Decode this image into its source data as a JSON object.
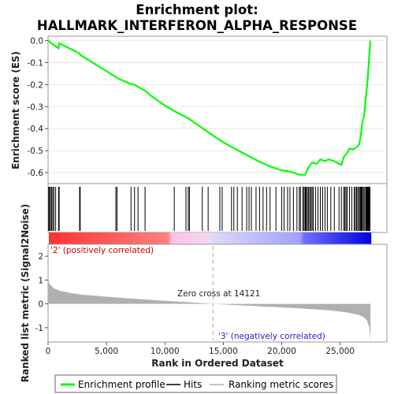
{
  "chart_data": {
    "type": "line",
    "title_line1": "Enrichment plot:",
    "title_line2": "HALLMARK_INTERFERON_ALPHA_RESPONSE",
    "es_panel": {
      "ylabel": "Enrichment score (ES)",
      "ylim": [
        -0.65,
        0.02
      ],
      "yticks": [
        "0.0",
        "-0.1",
        "-0.2",
        "-0.3",
        "-0.4",
        "-0.5",
        "-0.6"
      ],
      "ytick_values": [
        0.0,
        -0.1,
        -0.2,
        -0.3,
        -0.4,
        -0.5,
        -0.6
      ],
      "line_color": "#00ff00",
      "series_name": "Enrichment profile",
      "points": [
        [
          0,
          0.0
        ],
        [
          900,
          -0.035
        ],
        [
          950,
          -0.012
        ],
        [
          2700,
          -0.058
        ],
        [
          2750,
          -0.065
        ],
        [
          5800,
          -0.165
        ],
        [
          5900,
          -0.17
        ],
        [
          7100,
          -0.198
        ],
        [
          7400,
          -0.2
        ],
        [
          7700,
          -0.21
        ],
        [
          8300,
          -0.228
        ],
        [
          9000,
          -0.258
        ],
        [
          10000,
          -0.295
        ],
        [
          10800,
          -0.32
        ],
        [
          11800,
          -0.348
        ],
        [
          12100,
          -0.357
        ],
        [
          13000,
          -0.39
        ],
        [
          14121,
          -0.432
        ],
        [
          15000,
          -0.462
        ],
        [
          16000,
          -0.492
        ],
        [
          17000,
          -0.52
        ],
        [
          18000,
          -0.548
        ],
        [
          19000,
          -0.572
        ],
        [
          20000,
          -0.59
        ],
        [
          20500,
          -0.593
        ],
        [
          21000,
          -0.6
        ],
        [
          21500,
          -0.61
        ],
        [
          22000,
          -0.61
        ],
        [
          22300,
          -0.575
        ],
        [
          22600,
          -0.555
        ],
        [
          23000,
          -0.56
        ],
        [
          23300,
          -0.54
        ],
        [
          23700,
          -0.548
        ],
        [
          24000,
          -0.54
        ],
        [
          24500,
          -0.548
        ],
        [
          24900,
          -0.56
        ],
        [
          25100,
          -0.565
        ],
        [
          25300,
          -0.53
        ],
        [
          25600,
          -0.51
        ],
        [
          25800,
          -0.49
        ],
        [
          26100,
          -0.495
        ],
        [
          26400,
          -0.485
        ],
        [
          26600,
          -0.475
        ],
        [
          26750,
          -0.44
        ],
        [
          26900,
          -0.37
        ],
        [
          27050,
          -0.34
        ],
        [
          27200,
          -0.26
        ],
        [
          27350,
          -0.18
        ],
        [
          27450,
          -0.1
        ],
        [
          27530,
          -0.04
        ],
        [
          27600,
          0.0
        ]
      ]
    },
    "hits": {
      "label": "Hits",
      "positions": [
        50,
        120,
        200,
        300,
        400,
        500,
        650,
        900,
        950,
        2700,
        2750,
        5800,
        5900,
        7100,
        7400,
        7700,
        8300,
        10800,
        11800,
        12000,
        12100,
        13200,
        13700,
        14700,
        14900,
        15700,
        15900,
        16200,
        16600,
        17000,
        17200,
        17400,
        17800,
        18100,
        18400,
        18700,
        19000,
        19500,
        20000,
        20200,
        20500,
        20700,
        21000,
        21300,
        21500,
        21600,
        21800,
        21900,
        22000,
        22050,
        22100,
        22200,
        22300,
        22400,
        22500,
        22600,
        22700,
        22900,
        23100,
        23300,
        23500,
        23700,
        23900,
        24200,
        24500,
        24900,
        25100,
        25300,
        25400,
        25500,
        25600,
        25800,
        26000,
        26200,
        26300,
        26400,
        26500,
        26600,
        26700,
        26750,
        26800,
        26850,
        26900,
        27000,
        27100,
        27200,
        27250,
        27300,
        27350,
        27400,
        27450,
        27500,
        27550
      ]
    },
    "color_bar": {
      "pos_label": "'2' (positively correlated)",
      "neg_label": "'3' (negatively correlated)",
      "pos_color": "#ff0000",
      "neg_color": "#0000ff"
    },
    "metric_panel": {
      "ylabel": "Ranked list metric (Signal2Noise)",
      "ylim": [
        -1.6,
        2.5
      ],
      "yticks": [
        "2",
        "1",
        "0",
        "-1"
      ],
      "ytick_values": [
        2,
        1,
        0,
        -1
      ],
      "zero_cross_label": "Zero cross at 14121",
      "zero_cross": 14121,
      "fill_color": "#b0b0b0",
      "profile": [
        [
          0,
          1.25
        ],
        [
          100,
          0.85
        ],
        [
          500,
          0.65
        ],
        [
          1000,
          0.55
        ],
        [
          2000,
          0.45
        ],
        [
          3000,
          0.38
        ],
        [
          5000,
          0.3
        ],
        [
          7000,
          0.23
        ],
        [
          9000,
          0.16
        ],
        [
          11000,
          0.1
        ],
        [
          13000,
          0.04
        ],
        [
          14121,
          0.0
        ],
        [
          16000,
          -0.05
        ],
        [
          18000,
          -0.1
        ],
        [
          20000,
          -0.15
        ],
        [
          22000,
          -0.2
        ],
        [
          24000,
          -0.27
        ],
        [
          25500,
          -0.35
        ],
        [
          26500,
          -0.45
        ],
        [
          27000,
          -0.55
        ],
        [
          27300,
          -0.7
        ],
        [
          27500,
          -1.0
        ],
        [
          27600,
          -1.55
        ]
      ]
    },
    "x_axis": {
      "xlabel": "Rank in Ordered Dataset",
      "xlim": [
        0,
        29000
      ],
      "xticks": [
        "0",
        "5,000",
        "10,000",
        "15,000",
        "20,000",
        "25,000"
      ],
      "xtick_values": [
        0,
        5000,
        10000,
        15000,
        20000,
        25000
      ],
      "n_genes": 27600
    },
    "legend": {
      "items": [
        "Enrichment profile",
        "Hits",
        "Ranking metric scores"
      ]
    }
  }
}
